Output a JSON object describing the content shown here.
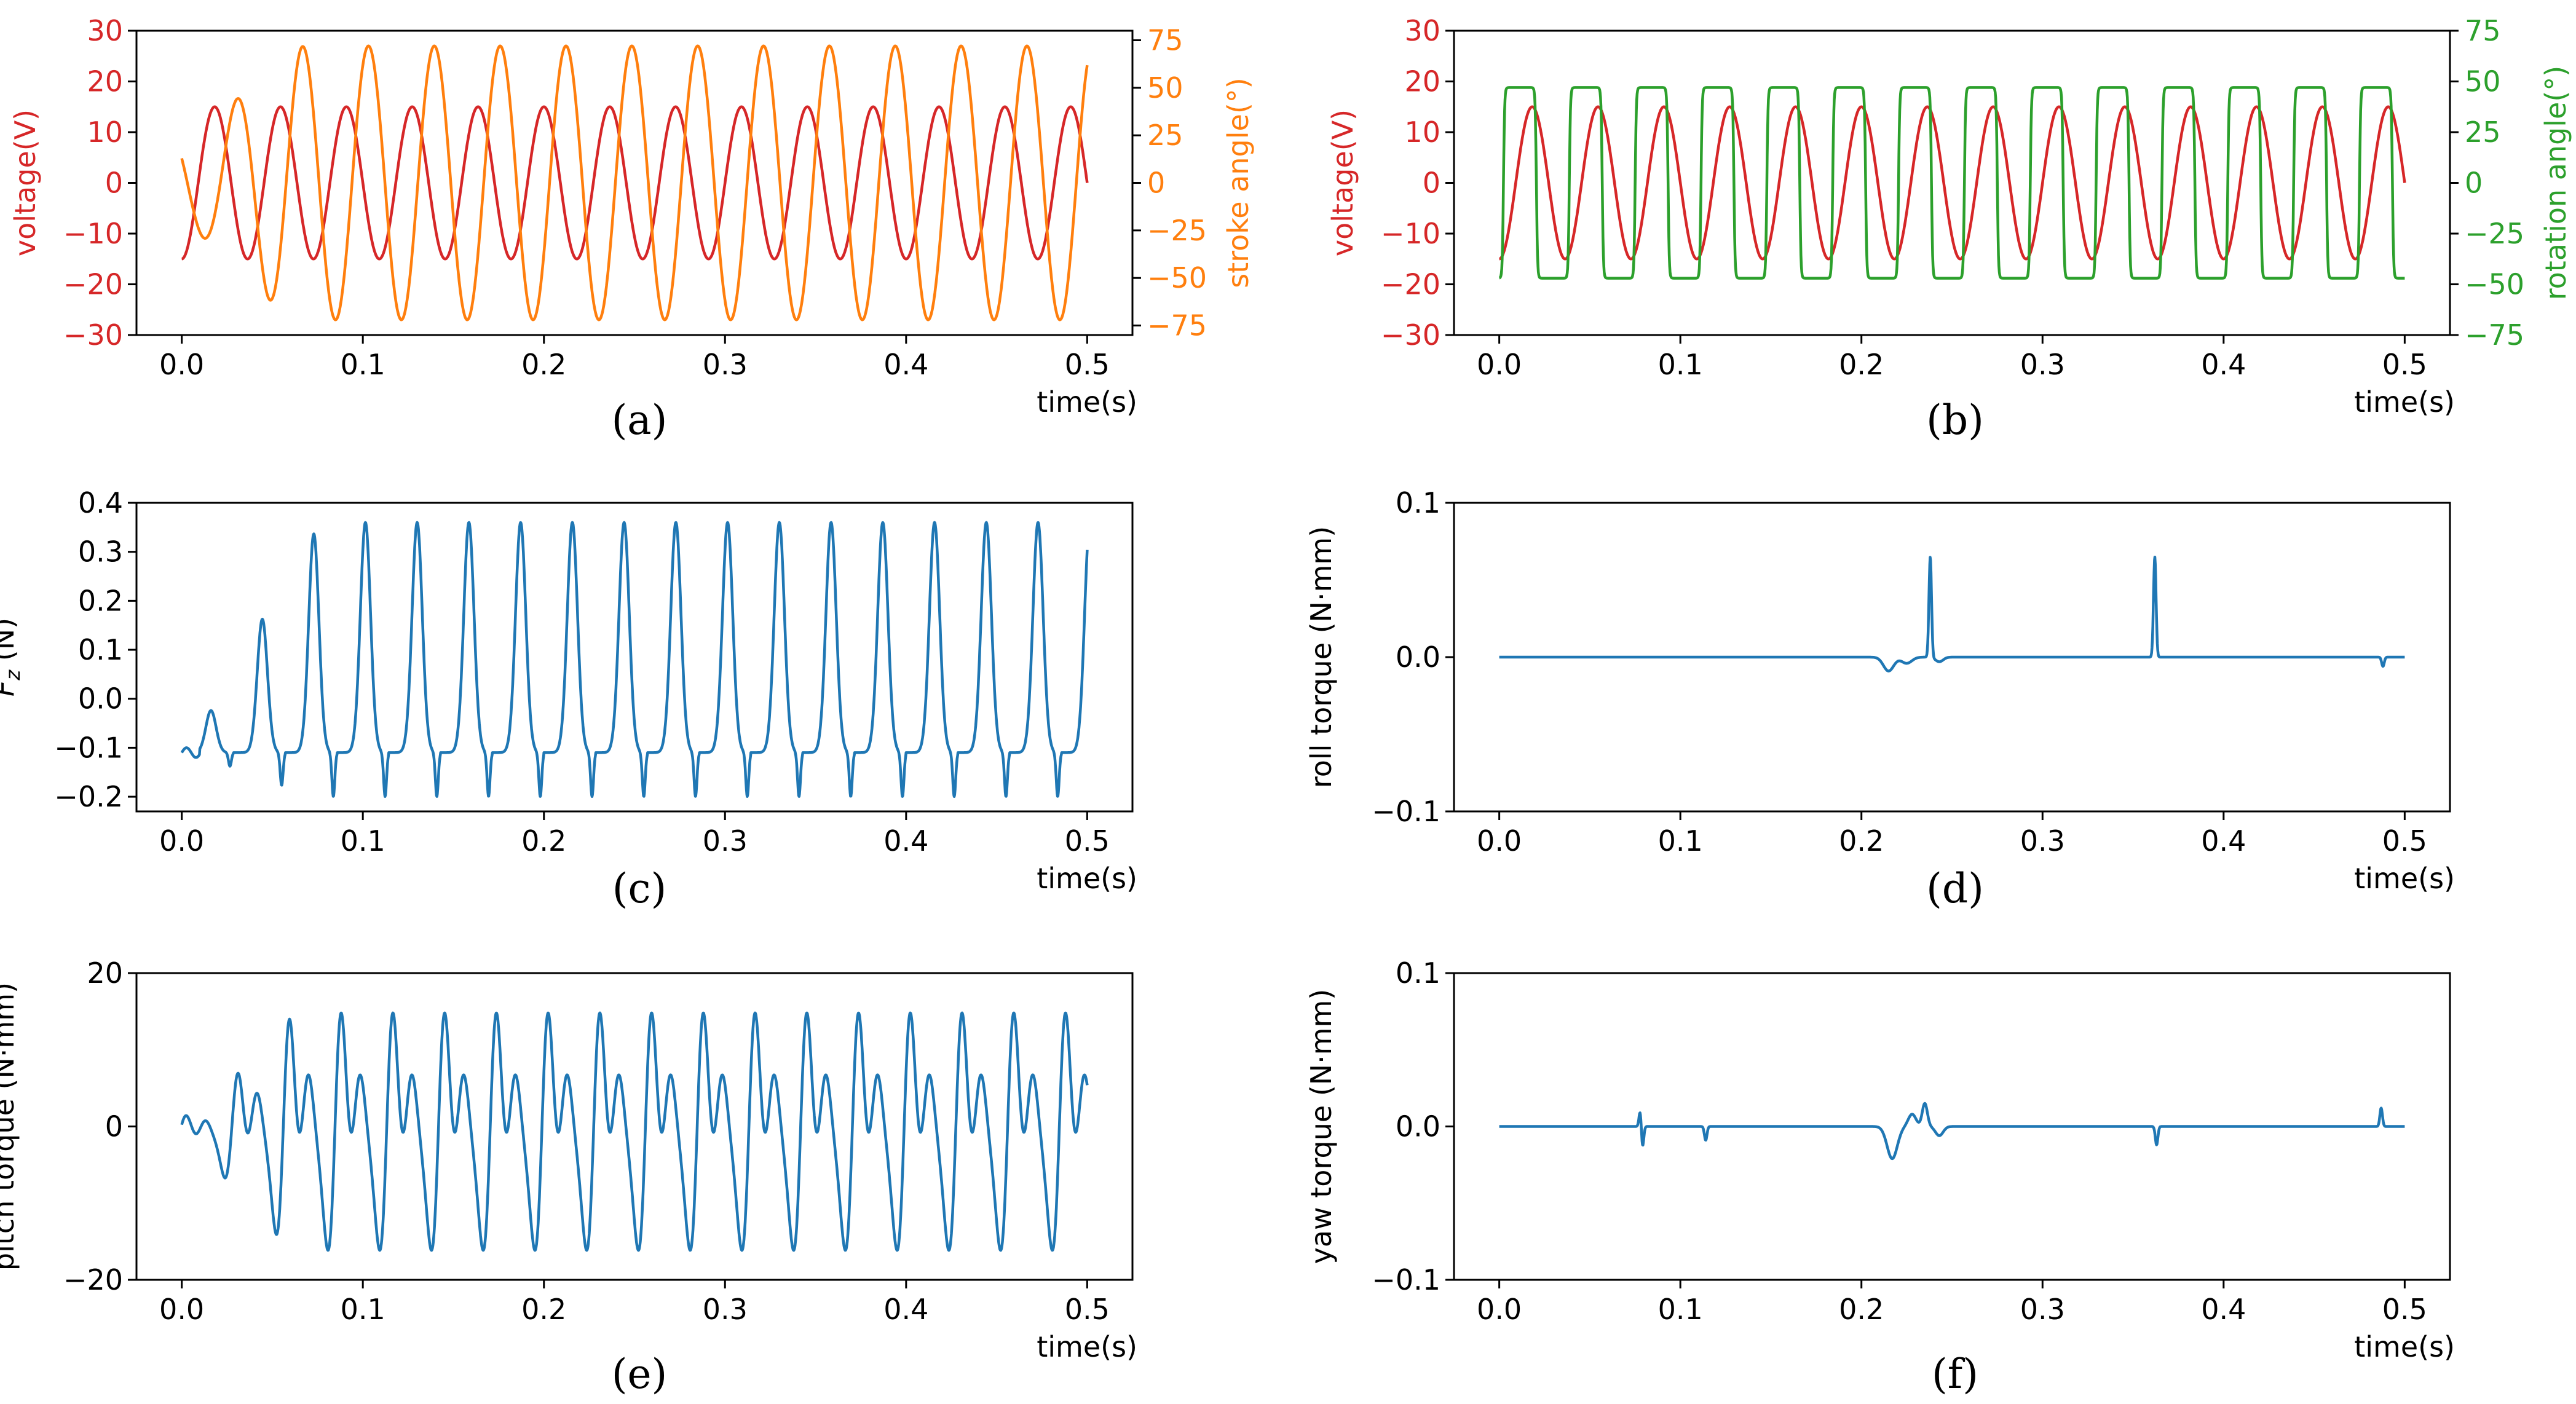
{
  "chart_data": [
    {
      "id": "a",
      "type": "line",
      "caption": "(a)",
      "xlabel": "time(s)",
      "xlim": [
        -0.025,
        0.525
      ],
      "xticks": [
        0.0,
        0.1,
        0.2,
        0.3,
        0.4,
        0.5
      ],
      "xtick_labels": [
        "0.0",
        "0.1",
        "0.2",
        "0.3",
        "0.4",
        "0.5"
      ],
      "left_axis": {
        "label": "voltage(V)",
        "color": "#d62728",
        "ylim": [
          -30,
          30
        ],
        "ticks": [
          -30,
          -20,
          -10,
          0,
          10,
          20,
          30
        ],
        "tick_labels": [
          "−30",
          "−20",
          "−10",
          "0",
          "10",
          "20",
          "30"
        ]
      },
      "right_axis": {
        "label": "stroke angle(°)",
        "color": "#ff7f0e",
        "ylim": [
          -80,
          80
        ],
        "ticks": [
          -75,
          -50,
          -25,
          0,
          25,
          50,
          75
        ],
        "tick_labels": [
          "−75",
          "−50",
          "−25",
          "0",
          "25",
          "50",
          "75"
        ]
      },
      "series": [
        {
          "name": "voltage",
          "axis": "left",
          "color": "#d62728",
          "model": "sine",
          "amplitude": 15,
          "frequency_hz": 27.5,
          "phase": "-cos",
          "x_range": [
            0,
            0.5
          ]
        },
        {
          "name": "stroke angle",
          "axis": "right",
          "color": "#ff7f0e",
          "model": "sine",
          "amplitude": 72,
          "frequency_hz": 27.5,
          "lag_s": 0.006,
          "ramp_s": 0.07,
          "x_range": [
            0,
            0.5
          ]
        }
      ]
    },
    {
      "id": "b",
      "type": "line",
      "caption": "(b)",
      "xlabel": "time(s)",
      "xlim": [
        -0.025,
        0.525
      ],
      "xticks": [
        0.0,
        0.1,
        0.2,
        0.3,
        0.4,
        0.5
      ],
      "xtick_labels": [
        "0.0",
        "0.1",
        "0.2",
        "0.3",
        "0.4",
        "0.5"
      ],
      "left_axis": {
        "label": "voltage(V)",
        "color": "#d62728",
        "ylim": [
          -30,
          30
        ],
        "ticks": [
          -30,
          -20,
          -10,
          0,
          10,
          20,
          30
        ],
        "tick_labels": [
          "−30",
          "−20",
          "−10",
          "0",
          "10",
          "20",
          "30"
        ]
      },
      "right_axis": {
        "label": "rotation angle(°)",
        "color": "#2ca02c",
        "ylim": [
          -75,
          75
        ],
        "ticks": [
          -75,
          -50,
          -25,
          0,
          25,
          50,
          75
        ],
        "tick_labels": [
          "−75",
          "−50",
          "−25",
          "0",
          "25",
          "50",
          "75"
        ]
      },
      "series": [
        {
          "name": "voltage",
          "axis": "left",
          "color": "#d62728",
          "model": "sine",
          "amplitude": 15,
          "frequency_hz": 27.5,
          "phase": "-cos",
          "x_range": [
            0,
            0.5
          ]
        },
        {
          "name": "rotation angle",
          "axis": "right",
          "color": "#2ca02c",
          "model": "square",
          "amplitude": 47,
          "frequency_hz": 27.5,
          "x_range": [
            0,
            0.5
          ]
        }
      ]
    },
    {
      "id": "c",
      "type": "line",
      "caption": "(c)",
      "xlabel": "time(s)",
      "xlim": [
        -0.025,
        0.525
      ],
      "xticks": [
        0.0,
        0.1,
        0.2,
        0.3,
        0.4,
        0.5
      ],
      "xtick_labels": [
        "0.0",
        "0.1",
        "0.2",
        "0.3",
        "0.4",
        "0.5"
      ],
      "ylabel": "F_z (N)",
      "ylabel_main": "F",
      "ylabel_sub": "z",
      "ylabel_unit": " (N)",
      "ylim": [
        -0.23,
        0.4
      ],
      "yticks": [
        -0.2,
        -0.1,
        0.0,
        0.1,
        0.2,
        0.3,
        0.4
      ],
      "ytick_labels": [
        "−0.2",
        "−0.1",
        "0.0",
        "0.1",
        "0.2",
        "0.3",
        "0.4"
      ],
      "series": [
        {
          "name": "Fz",
          "color": "#1f77b4",
          "model": "force",
          "peak": 0.36,
          "trough": -0.2,
          "cycles": 17.5,
          "x_range": [
            0,
            0.5
          ]
        }
      ]
    },
    {
      "id": "d",
      "type": "line",
      "caption": "(d)",
      "xlabel": "time(s)",
      "xlim": [
        -0.025,
        0.525
      ],
      "xticks": [
        0.0,
        0.1,
        0.2,
        0.3,
        0.4,
        0.5
      ],
      "xtick_labels": [
        "0.0",
        "0.1",
        "0.2",
        "0.3",
        "0.4",
        "0.5"
      ],
      "ylabel": "roll torque (N·mm)",
      "ylim": [
        -0.1,
        0.1
      ],
      "yticks": [
        -0.1,
        0.0,
        0.1
      ],
      "ytick_labels": [
        "−0.1",
        "0.0",
        "0.1"
      ],
      "series": [
        {
          "name": "roll torque",
          "color": "#1f77b4",
          "model": "flat",
          "events": [
            {
              "t": 0.215,
              "value": -0.009,
              "width": 0.004
            },
            {
              "t": 0.225,
              "value": -0.004,
              "width": 0.004
            },
            {
              "t": 0.238,
              "value": 0.065,
              "width": 0.001
            },
            {
              "t": 0.243,
              "value": -0.003,
              "width": 0.003
            },
            {
              "t": 0.362,
              "value": 0.065,
              "width": 0.001
            },
            {
              "t": 0.488,
              "value": -0.006,
              "width": 0.001
            }
          ],
          "x_range": [
            0,
            0.5
          ]
        }
      ]
    },
    {
      "id": "e",
      "type": "line",
      "caption": "(e)",
      "xlabel": "time(s)",
      "xlim": [
        -0.025,
        0.525
      ],
      "xticks": [
        0.0,
        0.1,
        0.2,
        0.3,
        0.4,
        0.5
      ],
      "xtick_labels": [
        "0.0",
        "0.1",
        "0.2",
        "0.3",
        "0.4",
        "0.5"
      ],
      "ylabel": "pitch torque (N·mm)",
      "ylim": [
        -20,
        20
      ],
      "yticks": [
        -20,
        0,
        20
      ],
      "ytick_labels": [
        "−20",
        "0",
        "20"
      ],
      "series": [
        {
          "name": "pitch torque",
          "color": "#1f77b4",
          "model": "pitch",
          "peak": 17,
          "trough": -17,
          "cycles": 17.5,
          "x_range": [
            0,
            0.5
          ]
        }
      ]
    },
    {
      "id": "f",
      "type": "line",
      "caption": "(f)",
      "xlabel": "time(s)",
      "xlim": [
        -0.025,
        0.525
      ],
      "xticks": [
        0.0,
        0.1,
        0.2,
        0.3,
        0.4,
        0.5
      ],
      "xtick_labels": [
        "0.0",
        "0.1",
        "0.2",
        "0.3",
        "0.4",
        "0.5"
      ],
      "ylabel": "yaw torque (N·mm)",
      "ylim": [
        -0.1,
        0.1
      ],
      "yticks": [
        -0.1,
        0.0,
        0.1
      ],
      "ytick_labels": [
        "−0.1",
        "0.0",
        "0.1"
      ],
      "series": [
        {
          "name": "yaw torque",
          "color": "#1f77b4",
          "model": "flat",
          "events": [
            {
              "t": 0.078,
              "value": 0.013,
              "width": 0.001
            },
            {
              "t": 0.079,
              "value": -0.016,
              "width": 0.001
            },
            {
              "t": 0.114,
              "value": -0.009,
              "width": 0.001
            },
            {
              "t": 0.217,
              "value": -0.021,
              "width": 0.004
            },
            {
              "t": 0.228,
              "value": 0.008,
              "width": 0.003
            },
            {
              "t": 0.235,
              "value": 0.015,
              "width": 0.002
            },
            {
              "t": 0.243,
              "value": -0.006,
              "width": 0.003
            },
            {
              "t": 0.363,
              "value": -0.012,
              "width": 0.001
            },
            {
              "t": 0.487,
              "value": 0.012,
              "width": 0.001
            }
          ],
          "x_range": [
            0,
            0.5
          ]
        }
      ]
    }
  ]
}
